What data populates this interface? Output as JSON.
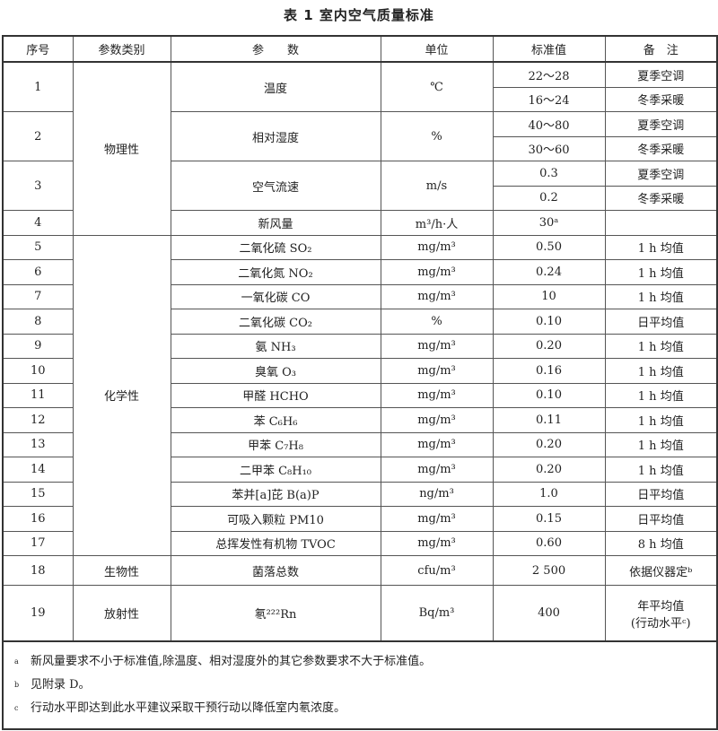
{
  "title": "表 1   室内空气质量标准",
  "headers": [
    "序号",
    "参数类别",
    "参　　数",
    "单位",
    "标准值",
    "备　注"
  ],
  "rows": [
    {
      "no": "1",
      "category": "物理性",
      "param": "温度",
      "unit": "℃",
      "values": [
        {
          "value": "22～28",
          "note": "夏季空调"
        },
        {
          "value": "16～24",
          "note": "冬季采暖"
        }
      ]
    },
    {
      "no": "2",
      "param": "相对湿度",
      "unit": "%",
      "values": [
        {
          "value": "40～80",
          "note": "夏季空调"
        },
        {
          "value": "30～60",
          "note": "冬季采暖"
        }
      ]
    },
    {
      "no": "3",
      "param": "空气流速",
      "unit": "m/s",
      "values": [
        {
          "value": "0.3",
          "note": "夏季空调"
        },
        {
          "value": "0.2",
          "note": "冬季采暖"
        }
      ]
    },
    {
      "no": "4",
      "param": "新风量",
      "unit": "m³/h·人",
      "values": [
        {
          "value": "30ᵃ",
          "note": ""
        }
      ]
    },
    {
      "no": "5",
      "category": "化学性",
      "param": "二氧化硫 SO₂",
      "unit": "mg/m³",
      "values": [
        {
          "value": "0.50",
          "note": "1 h 均值"
        }
      ]
    },
    {
      "no": "6",
      "param": "二氧化氮 NO₂",
      "unit": "mg/m³",
      "values": [
        {
          "value": "0.24",
          "note": "1 h 均值"
        }
      ]
    },
    {
      "no": "7",
      "param": "一氧化碳 CO",
      "unit": "mg/m³",
      "values": [
        {
          "value": "10",
          "note": "1 h 均值"
        }
      ]
    },
    {
      "no": "8",
      "param": "二氧化碳 CO₂",
      "unit": "%",
      "values": [
        {
          "value": "0.10",
          "note": "日平均值"
        }
      ]
    },
    {
      "no": "9",
      "param": "氨 NH₃",
      "unit": "mg/m³",
      "values": [
        {
          "value": "0.20",
          "note": "1 h 均值"
        }
      ]
    },
    {
      "no": "10",
      "param": "臭氧 O₃",
      "unit": "mg/m³",
      "values": [
        {
          "value": "0.16",
          "note": "1 h 均值"
        }
      ]
    },
    {
      "no": "11",
      "param": "甲醛 HCHO",
      "unit": "mg/m³",
      "values": [
        {
          "value": "0.10",
          "note": "1 h 均值"
        }
      ]
    },
    {
      "no": "12",
      "param": "苯 C₆H₆",
      "unit": "mg/m³",
      "values": [
        {
          "value": "0.11",
          "note": "1 h 均值"
        }
      ]
    },
    {
      "no": "13",
      "param": "甲苯 C₇H₈",
      "unit": "mg/m³",
      "values": [
        {
          "value": "0.20",
          "note": "1 h 均值"
        }
      ]
    },
    {
      "no": "14",
      "param": "二甲苯 C₈H₁₀",
      "unit": "mg/m³",
      "values": [
        {
          "value": "0.20",
          "note": "1 h 均值"
        }
      ]
    },
    {
      "no": "15",
      "param": "苯并[a]芘 B(a)P",
      "unit": "ng/m³",
      "values": [
        {
          "value": "1.0",
          "note": "日平均值"
        }
      ]
    },
    {
      "no": "16",
      "param": "可吸入颗粒 PM10",
      "unit": "mg/m³",
      "values": [
        {
          "value": "0.15",
          "note": "日平均值"
        }
      ]
    },
    {
      "no": "17",
      "param": "总挥发性有机物 TVOC",
      "unit": "mg/m³",
      "values": [
        {
          "value": "0.60",
          "note": "8 h 均值"
        }
      ]
    },
    {
      "no": "18",
      "category": "生物性",
      "param": "菌落总数",
      "unit": "cfu/m³",
      "values": [
        {
          "value": "2 500",
          "note": "依据仪器定ᵇ"
        }
      ]
    },
    {
      "no": "19",
      "category": "放射性",
      "param": "氡²²²Rn",
      "unit": "Bq/m³",
      "values": [
        {
          "value": "400",
          "note": "年平均值\n(行动水平ᶜ)"
        }
      ]
    }
  ],
  "category_spans": {
    "0": 4,
    "4": 13,
    "17": 1,
    "18": 1
  },
  "footnotes": [
    {
      "mark": "a",
      "text": "新风量要求不小于标准值,除温度、相对湿度外的其它参数要求不大于标准值。"
    },
    {
      "mark": "b",
      "text": "见附录 D。"
    },
    {
      "mark": "c",
      "text": "行动水平即达到此水平建议采取干预行动以降低室内氡浓度。"
    }
  ]
}
